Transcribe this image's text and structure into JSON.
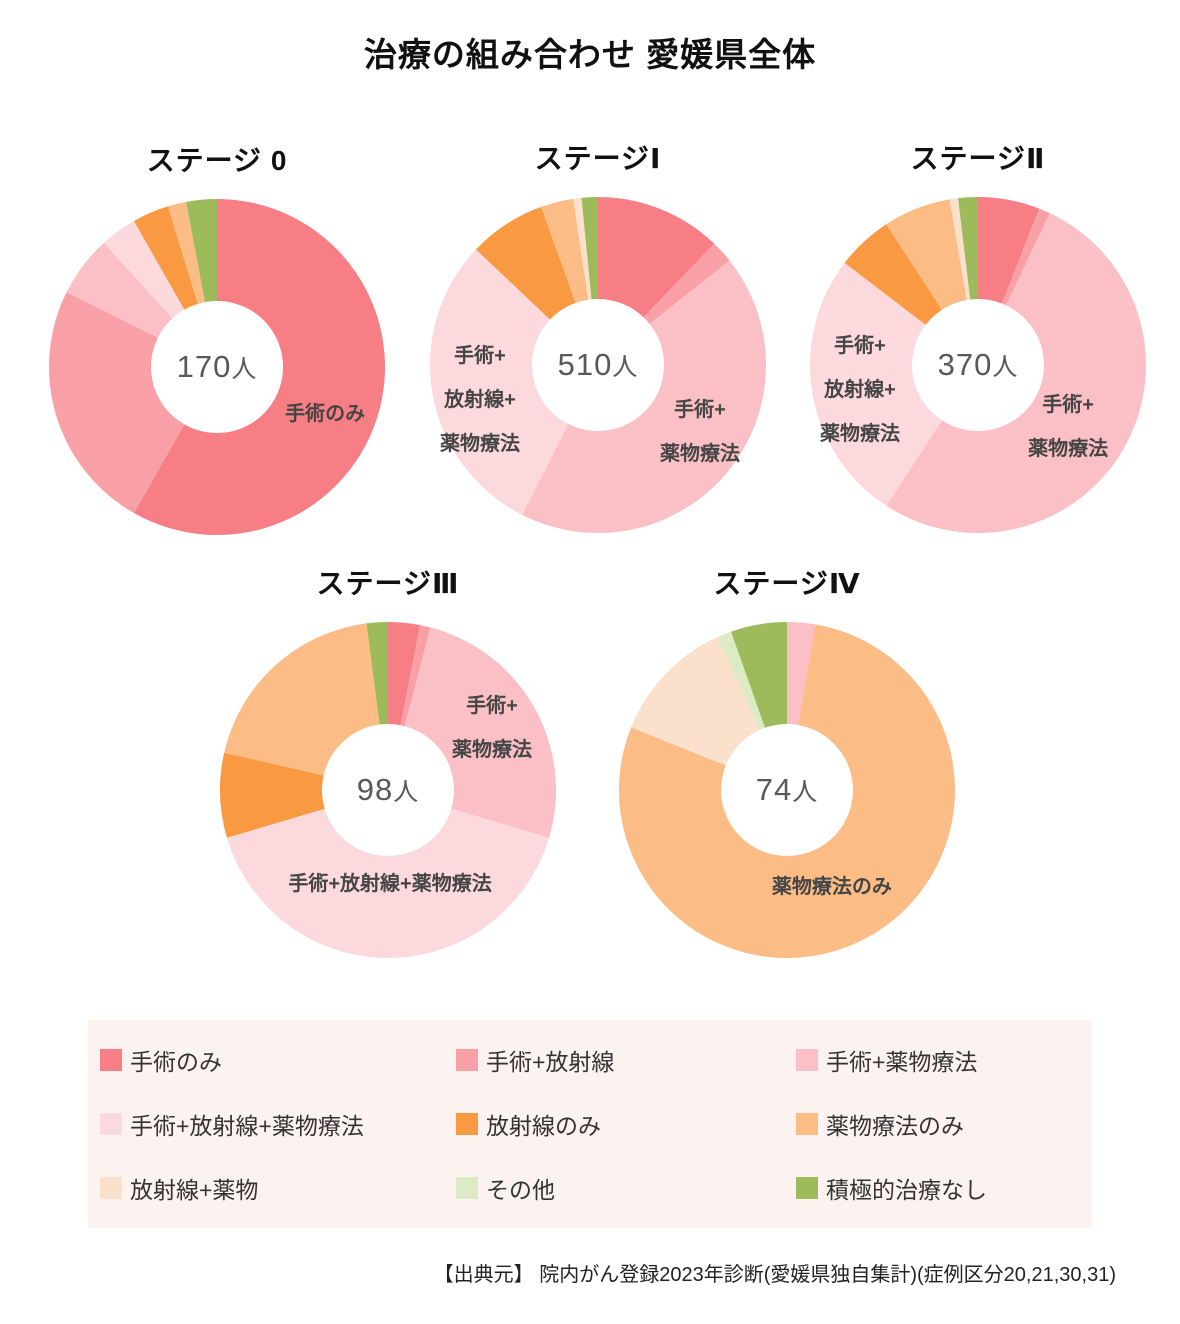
{
  "page": {
    "title": "治療の組み合わせ 愛媛県全体",
    "source": "【出典元】 院内がん登録2023年診断(愛媛県独自集計)(症例区分20,21,30,31)"
  },
  "legend": {
    "items": [
      {
        "id": "surgery-only",
        "label": "手術のみ",
        "color": "#F87E85"
      },
      {
        "id": "surgery-radiation",
        "label": "手術+放射線",
        "color": "#F9A0A7"
      },
      {
        "id": "surgery-drug",
        "label": "手術+薬物療法",
        "color": "#FBC0C5"
      },
      {
        "id": "surgery-radiation-drug",
        "label": "手術+放射線+薬物療法",
        "color": "#FCD9DD"
      },
      {
        "id": "radiation-only",
        "label": "放射線のみ",
        "color": "#F99A43"
      },
      {
        "id": "drug-only",
        "label": "薬物療法のみ",
        "color": "#FBBD85"
      },
      {
        "id": "radiation-drug",
        "label": "放射線+薬物",
        "color": "#FBE0CB"
      },
      {
        "id": "other",
        "label": "その他",
        "color": "#DCEAC5"
      },
      {
        "id": "no-active-treatment",
        "label": "積極的治療なし",
        "color": "#9DBB5B"
      }
    ]
  },
  "chart_data": {
    "type": "pie",
    "variant": "donut",
    "start_angle_deg": 0,
    "direction": "clockwise",
    "unit": "人",
    "charts": [
      {
        "title": "ステージ 0",
        "total": 170,
        "total_value": "170",
        "total_unit": "人",
        "slices": [
          {
            "label": "手術のみ",
            "value": 99
          },
          {
            "label": "手術+放射線",
            "value": 41
          },
          {
            "label": "手術+薬物療法",
            "value": 10
          },
          {
            "label": "手術+放射線+薬物療法",
            "value": 6
          },
          {
            "label": "放射線のみ",
            "value": 6
          },
          {
            "label": "薬物療法のみ",
            "value": 3
          },
          {
            "label": "積極的治療なし",
            "value": 5
          }
        ],
        "callouts": [
          {
            "lines": [
              "手術のみ"
            ],
            "x": 81.8,
            "y": 63.8
          }
        ]
      },
      {
        "title": "ステージⅠ",
        "total": 510,
        "total_value": "510",
        "total_unit": "人",
        "slices": [
          {
            "label": "手術のみ",
            "value": 62
          },
          {
            "label": "手術+放射線",
            "value": 11
          },
          {
            "label": "手術+薬物療法",
            "value": 220
          },
          {
            "label": "手術+放射線+薬物療法",
            "value": 151
          },
          {
            "label": "放射線のみ",
            "value": 38
          },
          {
            "label": "薬物療法のみ",
            "value": 16
          },
          {
            "label": "放射線+薬物",
            "value": 4
          },
          {
            "label": "積極的治療なし",
            "value": 8
          }
        ],
        "callouts": [
          {
            "lines": [
              "手術+",
              "放射線+",
              "薬物療法"
            ],
            "x": 15.3,
            "y": 60.3
          },
          {
            "lines": [
              "手術+",
              "薬物療法"
            ],
            "x": 80.0,
            "y": 69.7
          }
        ]
      },
      {
        "title": "ステージⅡ",
        "total": 370,
        "total_value": "370",
        "total_unit": "人",
        "slices": [
          {
            "label": "手術のみ",
            "value": 22
          },
          {
            "label": "手術+放射線",
            "value": 4
          },
          {
            "label": "手術+薬物療法",
            "value": 193
          },
          {
            "label": "手術+放射線+薬物療法",
            "value": 97
          },
          {
            "label": "放射線のみ",
            "value": 20
          },
          {
            "label": "薬物療法のみ",
            "value": 24
          },
          {
            "label": "放射線+薬物",
            "value": 3
          },
          {
            "label": "積極的治療なし",
            "value": 7
          }
        ],
        "callouts": [
          {
            "lines": [
              "手術+",
              "放射線+",
              "薬物療法"
            ],
            "x": 15.3,
            "y": 57.4
          },
          {
            "lines": [
              "手術+",
              "薬物療法"
            ],
            "x": 76.5,
            "y": 68.2
          }
        ]
      },
      {
        "title": "ステージⅢ",
        "total": 98,
        "total_value": "98",
        "total_unit": "人",
        "slices": [
          {
            "label": "手術のみ",
            "value": 3
          },
          {
            "label": "手術+放射線",
            "value": 1
          },
          {
            "label": "手術+薬物療法",
            "value": 25
          },
          {
            "label": "手術+放射線+薬物療法",
            "value": 40
          },
          {
            "label": "放射線のみ",
            "value": 8
          },
          {
            "label": "薬物療法のみ",
            "value": 19
          },
          {
            "label": "積極的治療なし",
            "value": 2
          }
        ],
        "callouts": [
          {
            "lines": [
              "手術+",
              "薬物療法"
            ],
            "x": 80.6,
            "y": 31.8
          },
          {
            "lines": [
              "手術+放射線+薬物療法"
            ],
            "x": 50.6,
            "y": 77.6
          }
        ]
      },
      {
        "title": "ステージⅣ",
        "total": 74,
        "total_value": "74",
        "total_unit": "人",
        "slices": [
          {
            "label": "手術+薬物療法",
            "value": 2
          },
          {
            "label": "薬物療法のみ",
            "value": 58
          },
          {
            "label": "放射線+薬物",
            "value": 9
          },
          {
            "label": "その他",
            "value": 1
          },
          {
            "label": "積極的治療なし",
            "value": 4
          }
        ],
        "callouts": [
          {
            "lines": [
              "薬物療法のみ"
            ],
            "x": 63.2,
            "y": 78.5
          }
        ]
      }
    ]
  }
}
